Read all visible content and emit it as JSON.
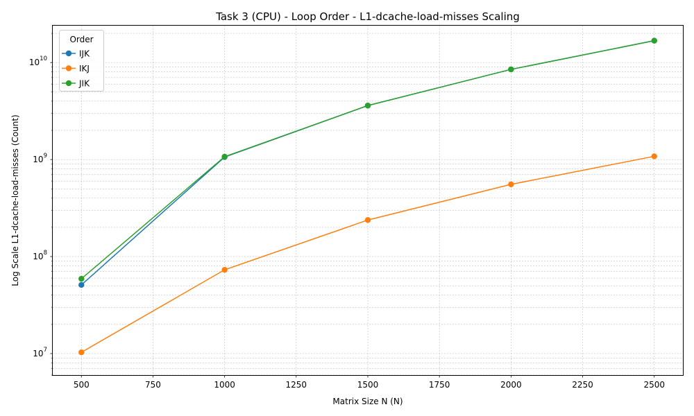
{
  "chart_data": {
    "type": "line",
    "title": "Task 3 (CPU) - Loop Order - L1-dcache-load-misses Scaling",
    "xlabel": "Matrix Size N (N)",
    "ylabel": "Log Scale L1-dcache-load-misses (Count)",
    "y_scale": "log",
    "grid": true,
    "legend_title": "Order",
    "legend_position": "top-left",
    "x": [
      500,
      1000,
      1500,
      2000,
      2500
    ],
    "xlim": [
      400,
      2600
    ],
    "ylim": [
      6000000,
      24000000000
    ],
    "x_ticks": [
      500,
      750,
      1000,
      1250,
      1500,
      1750,
      2000,
      2250,
      2500
    ],
    "x_tick_labels": [
      "500",
      "750",
      "1000",
      "1250",
      "1500",
      "1750",
      "2000",
      "2250",
      "2500"
    ],
    "y_major_ticks": [
      10000000,
      100000000,
      1000000000,
      10000000000
    ],
    "y_major_tick_labels": [
      {
        "base": "10",
        "exp": "7"
      },
      {
        "base": "10",
        "exp": "8"
      },
      {
        "base": "10",
        "exp": "9"
      },
      {
        "base": "10",
        "exp": "10"
      }
    ],
    "series": [
      {
        "name": "IJK",
        "color": "#1f77b4",
        "values": [
          51000000,
          1060000000,
          3600000000,
          8500000000,
          16800000000
        ]
      },
      {
        "name": "IKJ",
        "color": "#ff7f0e",
        "values": [
          10300000,
          73000000,
          238000000,
          555000000,
          1080000000
        ]
      },
      {
        "name": "JIK",
        "color": "#2ca02c",
        "values": [
          59000000,
          1070000000,
          3600000000,
          8500000000,
          16800000000
        ]
      }
    ]
  }
}
